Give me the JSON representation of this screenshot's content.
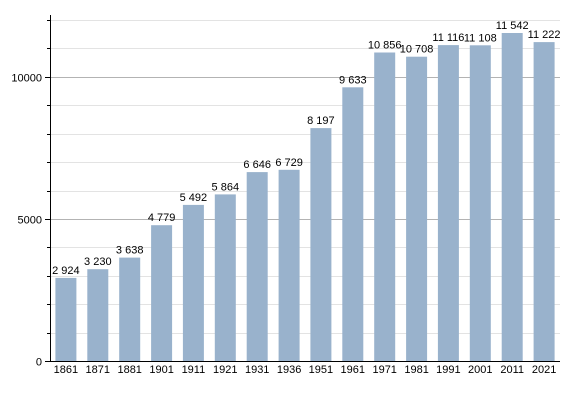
{
  "chart_data": {
    "type": "bar",
    "categories": [
      "1861",
      "1871",
      "1881",
      "1901",
      "1911",
      "1921",
      "1931",
      "1936",
      "1951",
      "1961",
      "1971",
      "1981",
      "1991",
      "2001",
      "2011",
      "2021"
    ],
    "values": [
      2924,
      3230,
      3638,
      4779,
      5492,
      5864,
      6646,
      6729,
      8197,
      9633,
      10856,
      10708,
      11116,
      11108,
      11542,
      11222
    ],
    "value_labels": [
      "2 924",
      "3 230",
      "3 638",
      "4 779",
      "5 492",
      "5 864",
      "6 646",
      "6 729",
      "8 197",
      "9 633",
      "10 856",
      "10 708",
      "11 116",
      "11 108",
      "11 542",
      "11 222"
    ],
    "title": "",
    "xlabel": "",
    "ylabel": "",
    "ylim": [
      0,
      12000
    ],
    "yticks": [
      0,
      5000,
      10000
    ],
    "ytick_labels": [
      "0",
      "5000",
      "10000"
    ],
    "minor_step": 1000,
    "grid": true,
    "bar_color": "#99b2cc",
    "grid_major_color": "#b3b3b3",
    "grid_minor_color": "#e3e3e3"
  }
}
